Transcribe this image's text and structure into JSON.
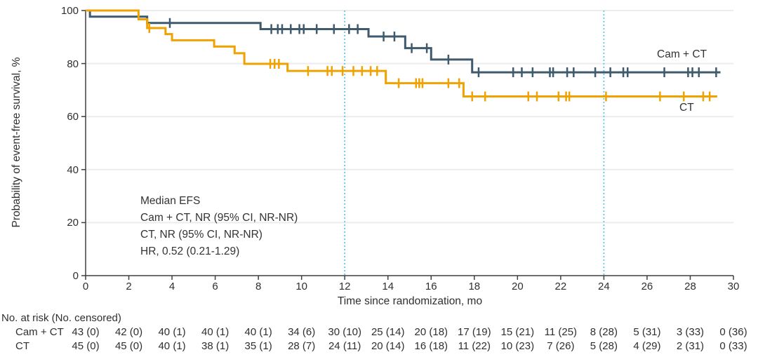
{
  "colors": {
    "cam_ct_line": "#3e5a6c",
    "ct_line": "#f0a202",
    "reference_line": "#4fc3ea",
    "gridline": "#ececec",
    "axis": "#3f3f3f",
    "text": "#2f2f2f"
  },
  "annotation": {
    "lines": [
      "Median EFS",
      "Cam + CT, NR (95% CI, NR-NR)",
      "CT, NR (95% CI, NR-NR)",
      "HR, 0.52 (0.21-1.29)"
    ]
  },
  "curve_labels": {
    "cam_ct": "Cam + CT",
    "ct": "CT"
  },
  "chart_data": {
    "type": "line",
    "subtype": "kaplan-meier-step",
    "xlabel": "Time since randomization, mo",
    "ylabel": "Probability of event-free survival, %",
    "xlim": [
      0,
      30
    ],
    "ylim": [
      0,
      100
    ],
    "x_tick_labels": [
      "0",
      "2",
      "4",
      "6",
      "8",
      "10",
      "12",
      "14",
      "16",
      "18",
      "20",
      "22",
      "24",
      "26",
      "28",
      "30"
    ],
    "y_tick_labels": [
      "100",
      "80",
      "60",
      "40",
      "20",
      "0"
    ],
    "x_ticks": [
      0,
      2,
      4,
      6,
      8,
      10,
      12,
      14,
      16,
      18,
      20,
      22,
      24,
      26,
      28,
      30
    ],
    "y_ticks": [
      100,
      80,
      60,
      40,
      20,
      0
    ],
    "gridlines_y": [
      20,
      40,
      60,
      80,
      100
    ],
    "reference_lines_x": [
      12,
      24
    ],
    "grid": true,
    "legend_position": "on-curve-right",
    "series": [
      {
        "name": "Cam + CT",
        "color": "#3e5a6c",
        "steps": [
          [
            0,
            100
          ],
          [
            0.2,
            97.7
          ],
          [
            2.85,
            95.3
          ],
          [
            8.1,
            93.0
          ],
          [
            13.1,
            90.2
          ],
          [
            14.8,
            85.8
          ],
          [
            16.0,
            81.5
          ],
          [
            17.9,
            76.7
          ]
        ],
        "end_time": 29.4,
        "censor_times": [
          3.9,
          8.6,
          8.9,
          9.1,
          9.5,
          9.9,
          10.1,
          10.7,
          11.5,
          12.2,
          12.6,
          13.8,
          14.3,
          15.1,
          15.8,
          16.8,
          18.2,
          19.8,
          20.2,
          20.7,
          21.5,
          21.65,
          22.3,
          22.6,
          23.6,
          24.3,
          24.9,
          25.1,
          26.8,
          27.9,
          28.1,
          28.4,
          29.2
        ]
      },
      {
        "name": "CT",
        "color": "#f0a202",
        "steps": [
          [
            0,
            100
          ],
          [
            2.45,
            96.7
          ],
          [
            2.85,
            93.4
          ],
          [
            3.7,
            91.1
          ],
          [
            4.0,
            88.8
          ],
          [
            5.95,
            86.4
          ],
          [
            6.9,
            83.9
          ],
          [
            7.35,
            79.9
          ],
          [
            9.35,
            77.2
          ],
          [
            13.9,
            72.6
          ],
          [
            17.5,
            67.6
          ]
        ],
        "end_time": 29.25,
        "censor_times": [
          2.95,
          8.55,
          8.75,
          8.95,
          10.3,
          11.2,
          11.4,
          11.9,
          12.4,
          12.8,
          13.2,
          13.5,
          14.5,
          15.3,
          15.45,
          15.6,
          16.8,
          17.3,
          17.9,
          18.5,
          20.5,
          20.9,
          21.9,
          22.25,
          22.4,
          24.1,
          26.6,
          27.7,
          28.6,
          28.9
        ]
      }
    ]
  },
  "risk_table": {
    "header": "No. at risk (No. censored)",
    "timepoints": [
      0,
      2,
      4,
      6,
      8,
      10,
      12,
      14,
      16,
      18,
      20,
      22,
      24,
      26,
      28,
      30
    ],
    "rows": [
      {
        "label": "Cam + CT",
        "values": [
          "43 (0)",
          "42 (0)",
          "40 (1)",
          "40 (1)",
          "40 (1)",
          "34 (6)",
          "30 (10)",
          "25 (14)",
          "20 (18)",
          "17 (19)",
          "15 (21)",
          "11 (25)",
          "8 (28)",
          "5 (31)",
          "3 (33)",
          "0 (36)"
        ]
      },
      {
        "label": "CT",
        "values": [
          "45 (0)",
          "45 (0)",
          "40 (1)",
          "38 (1)",
          "35 (1)",
          "28 (7)",
          "24 (11)",
          "20 (14)",
          "16 (18)",
          "11 (22)",
          "10 (23)",
          "7 (26)",
          "5 (28)",
          "4 (29)",
          "2 (31)",
          "0 (33)"
        ]
      }
    ]
  }
}
